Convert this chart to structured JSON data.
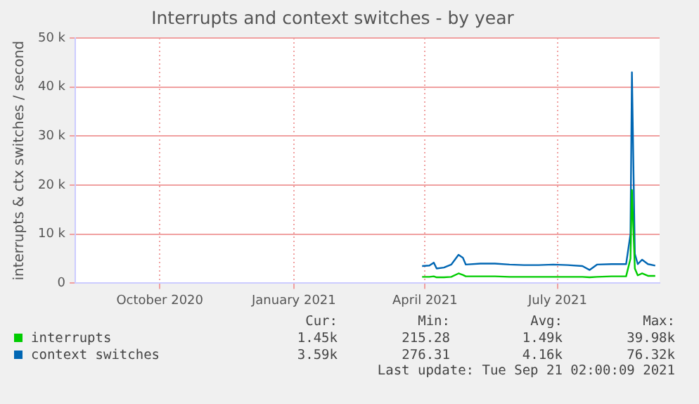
{
  "chart_data": {
    "type": "line",
    "title": "Interrupts and context switches - by year",
    "ylabel": "interrupts & ctx switches / second",
    "x": [
      "2021-03-30",
      "2021-04-04",
      "2021-04-07",
      "2021-04-09",
      "2021-04-14",
      "2021-04-19",
      "2021-04-24",
      "2021-04-27",
      "2021-04-29",
      "2021-05-09",
      "2021-05-19",
      "2021-05-29",
      "2021-06-08",
      "2021-06-18",
      "2021-06-28",
      "2021-07-08",
      "2021-07-18",
      "2021-07-23",
      "2021-07-28",
      "2021-08-07",
      "2021-08-17",
      "2021-08-20",
      "2021-08-21",
      "2021-08-23",
      "2021-08-25",
      "2021-08-28",
      "2021-09-01",
      "2021-09-06"
    ],
    "series": [
      {
        "name": "interrupts",
        "color": "#00cc00",
        "values": [
          1300,
          1300,
          1400,
          1200,
          1200,
          1300,
          2000,
          1700,
          1400,
          1400,
          1400,
          1300,
          1300,
          1300,
          1300,
          1300,
          1300,
          1200,
          1300,
          1400,
          1400,
          5000,
          19000,
          3000,
          1600,
          2000,
          1500,
          1500
        ]
      },
      {
        "name": "context switches",
        "color": "#0066b3",
        "values": [
          3500,
          3600,
          4200,
          3000,
          3200,
          3800,
          5800,
          5200,
          3800,
          4000,
          4000,
          3800,
          3700,
          3700,
          3800,
          3700,
          3500,
          2700,
          3800,
          3900,
          3900,
          10000,
          43000,
          6000,
          3900,
          4800,
          3900,
          3600
        ]
      }
    ],
    "xlim": [
      "2020-08-04",
      "2021-09-09"
    ],
    "xticks": [
      {
        "value": "2020-10-01",
        "label": "October 2020"
      },
      {
        "value": "2021-01-01",
        "label": "January 2021"
      },
      {
        "value": "2021-04-01",
        "label": "April 2021"
      },
      {
        "value": "2021-07-01",
        "label": "July 2021"
      }
    ],
    "ylim": [
      0,
      50000
    ],
    "yticks": [
      {
        "value": 0,
        "label": "0"
      },
      {
        "value": 10000,
        "label": "10 k"
      },
      {
        "value": 20000,
        "label": "20 k"
      },
      {
        "value": 30000,
        "label": "30 k"
      },
      {
        "value": 40000,
        "label": "40 k"
      },
      {
        "value": 50000,
        "label": "50 k"
      }
    ],
    "grid": true,
    "legend": "bottom",
    "marker": "none",
    "line_style": "solid",
    "annotations": [
      "Cur:",
      "Min:",
      "Avg:",
      "Max:",
      "1.45k",
      "215.28",
      "1.49k",
      "39.98k",
      "3.59k",
      "276.31",
      "4.16k",
      "76.32k",
      "Last update: Tue Sep 21 02:00:09 2021"
    ]
  }
}
